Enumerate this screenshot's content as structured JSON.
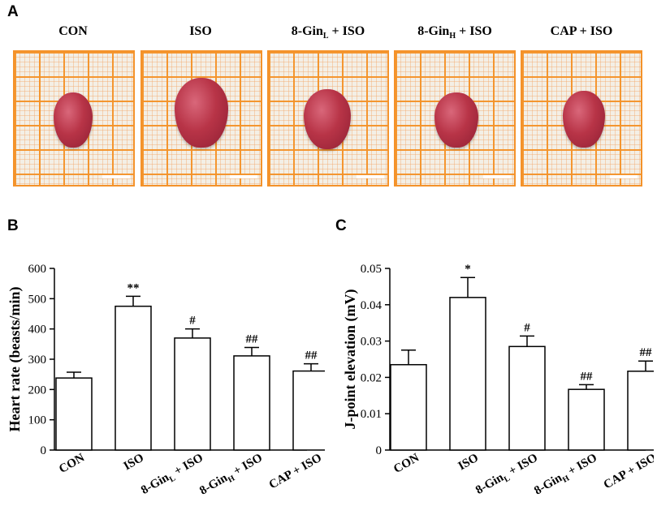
{
  "panel_labels": {
    "a": "A",
    "b": "B",
    "c": "C"
  },
  "photos": [
    {
      "title_main": "CON",
      "title_sub": ""
    },
    {
      "title_main": "ISO",
      "title_sub": ""
    },
    {
      "title_main": "8-Gin",
      "title_sub": "L",
      "title_rest": " + ISO"
    },
    {
      "title_main": "8-Gin",
      "title_sub": "H",
      "title_rest": " + ISO"
    },
    {
      "title_main": "CAP + ISO",
      "title_sub": ""
    }
  ],
  "chart_data": [
    {
      "type": "bar",
      "panel": "B",
      "title": "",
      "ylabel": "Heart rate (beasts/min)",
      "xlabel": "",
      "categories": [
        "CON",
        "ISO",
        "8-GinL + ISO",
        "8-GinH + ISO",
        "CAP + ISO"
      ],
      "category_labels": [
        {
          "main": "CON",
          "sub": "",
          "rest": ""
        },
        {
          "main": "ISO",
          "sub": "",
          "rest": ""
        },
        {
          "main": "8-Gin",
          "sub": "L",
          "rest": " + ISO"
        },
        {
          "main": "8-Gin",
          "sub": "H",
          "rest": " + ISO"
        },
        {
          "main": "CAP + ISO",
          "sub": "",
          "rest": ""
        }
      ],
      "values": [
        238,
        475,
        370,
        311,
        261
      ],
      "errors": [
        19,
        33,
        30,
        28,
        24
      ],
      "annotations": [
        "",
        "**",
        "#",
        "##",
        "##"
      ],
      "ylim": [
        0,
        600
      ],
      "yticks": [
        0,
        100,
        200,
        300,
        400,
        500,
        600
      ],
      "ytick_labels": [
        "0",
        "100",
        "200",
        "300",
        "400",
        "500",
        "600"
      ]
    },
    {
      "type": "bar",
      "panel": "C",
      "title": "",
      "ylabel": "J-point elevation (mV)",
      "xlabel": "",
      "categories": [
        "CON",
        "ISO",
        "8-GinL + ISO",
        "8-GinH + ISO",
        "CAP + ISO"
      ],
      "category_labels": [
        {
          "main": "CON",
          "sub": "",
          "rest": ""
        },
        {
          "main": "ISO",
          "sub": "",
          "rest": ""
        },
        {
          "main": "8-Gin",
          "sub": "L",
          "rest": " + ISO"
        },
        {
          "main": "8-Gin",
          "sub": "H",
          "rest": " + ISO"
        },
        {
          "main": "CAP + ISO",
          "sub": "",
          "rest": ""
        }
      ],
      "values": [
        0.0235,
        0.042,
        0.0285,
        0.0167,
        0.0217
      ],
      "errors": [
        0.004,
        0.0055,
        0.0029,
        0.0013,
        0.0028
      ],
      "annotations": [
        "",
        "*",
        "#",
        "##",
        "##"
      ],
      "ylim": [
        0,
        0.05
      ],
      "yticks": [
        0,
        0.01,
        0.02,
        0.03,
        0.04,
        0.05
      ],
      "ytick_labels": [
        "0",
        "0.01",
        "0.02",
        "0.03",
        "0.04",
        "0.05"
      ]
    }
  ]
}
